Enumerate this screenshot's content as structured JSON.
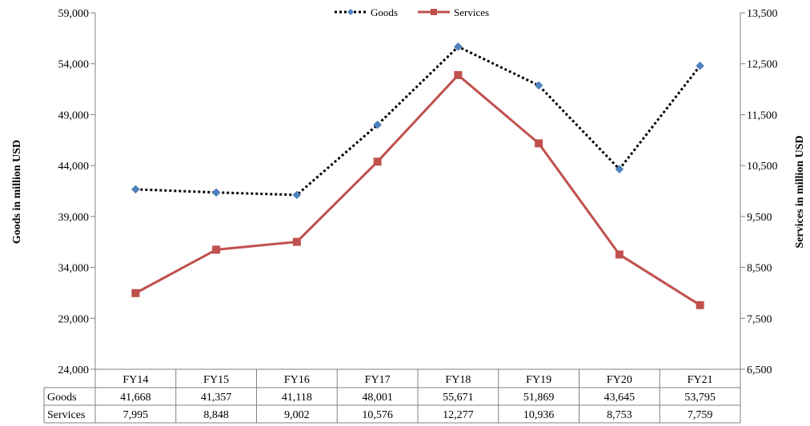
{
  "chart_data": {
    "type": "line",
    "categories": [
      "FY14",
      "FY15",
      "FY16",
      "FY17",
      "FY18",
      "FY19",
      "FY20",
      "FY21"
    ],
    "series": [
      {
        "name": "Goods",
        "axis": "left",
        "values": [
          41668,
          41357,
          41118,
          48001,
          55671,
          51869,
          43645,
          53795
        ],
        "color": "#000000",
        "marker_color": "#4F81BD",
        "line_style": "dotted",
        "marker": "diamond"
      },
      {
        "name": "Services",
        "axis": "right",
        "values": [
          7995,
          8848,
          9002,
          10576,
          12277,
          10936,
          8753,
          7759
        ],
        "color": "#C0504D",
        "marker_color": "#C0504D",
        "line_style": "solid",
        "marker": "square"
      }
    ],
    "y_left": {
      "label": "Goods in million USD",
      "ylim": [
        24000,
        59000
      ],
      "ticks": [
        "24,000",
        "29,000",
        "34,000",
        "39,000",
        "44,000",
        "49,000",
        "54,000",
        "59,000"
      ]
    },
    "y_right": {
      "label": "Services in million  USD",
      "ylim": [
        6500,
        13500
      ],
      "ticks": [
        "6,500",
        "7,500",
        "8,500",
        "9,500",
        "10,500",
        "11,500",
        "12,500",
        "13,500"
      ]
    },
    "legend_position": "top-center",
    "grid": false,
    "data_table": {
      "rows": [
        {
          "label": "Goods",
          "values": [
            "41,668",
            "41,357",
            "41,118",
            "48,001",
            "55,671",
            "51,869",
            "43,645",
            "53,795"
          ]
        },
        {
          "label": "Services",
          "values": [
            "7,995",
            "8,848",
            "9,002",
            "10,576",
            "12,277",
            "10,936",
            "8,753",
            "7,759"
          ]
        }
      ]
    }
  }
}
